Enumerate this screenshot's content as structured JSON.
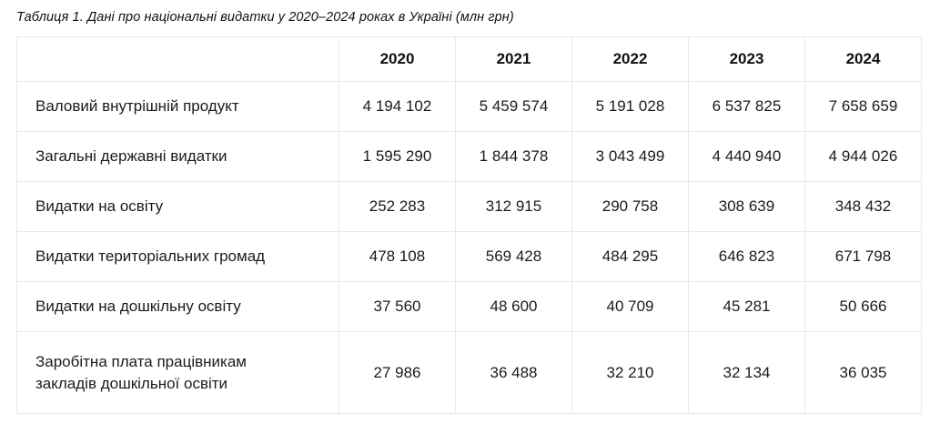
{
  "caption": "Таблиця 1. Дані про національні видатки у 2020–2024 роках в Україні (млн грн)",
  "table": {
    "corner": "",
    "years": [
      "2020",
      "2021",
      "2022",
      "2023",
      "2024"
    ],
    "rows": [
      {
        "label": "Валовий внутрішній продукт",
        "values": [
          "4 194 102",
          "5 459 574",
          "5 191 028",
          "6 537 825",
          "7 658 659"
        ]
      },
      {
        "label": "Загальні державні видатки",
        "values": [
          "1 595 290",
          "1 844 378",
          "3 043 499",
          "4 440 940",
          "4 944 026"
        ]
      },
      {
        "label": "Видатки на освіту",
        "values": [
          "252 283",
          "312 915",
          "290 758",
          "308 639",
          "348 432"
        ]
      },
      {
        "label": "Видатки територіальних громад",
        "values": [
          "478 108",
          "569 428",
          "484 295",
          "646 823",
          "671 798"
        ]
      },
      {
        "label": "Видатки на дошкільну освіту",
        "values": [
          "37 560",
          "48 600",
          "40 709",
          "45 281",
          "50 666"
        ]
      },
      {
        "label": "Заробітна плата працівникам закладів дошкільної освіти",
        "values": [
          "27 986",
          "36 488",
          "32 210",
          "32 134",
          "36 035"
        ]
      }
    ]
  }
}
